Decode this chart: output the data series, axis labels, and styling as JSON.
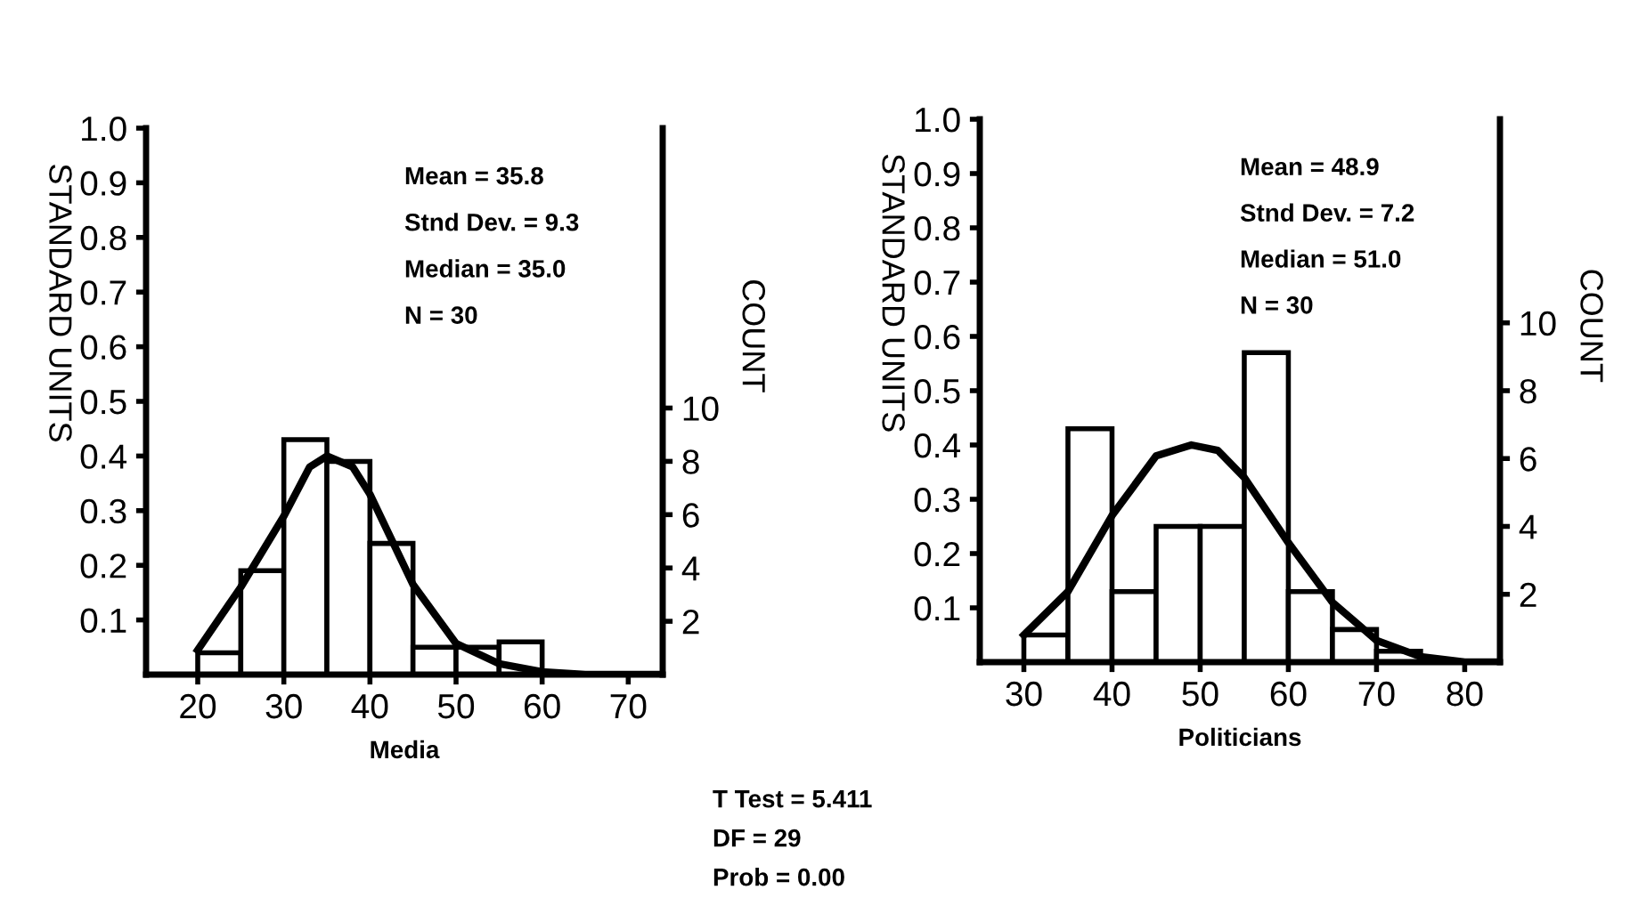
{
  "chart_data": [
    {
      "type": "histogram",
      "xlabel": "Media",
      "ylabel": "STANDARD UNITS",
      "y2label": "COUNT",
      "bins": [
        20,
        25,
        30,
        35,
        40,
        45,
        50,
        55,
        60
      ],
      "values": [
        0.04,
        0.19,
        0.43,
        0.39,
        0.24,
        0.05,
        0.05,
        0.06
      ],
      "color": "#ffffff",
      "series": [
        {
          "type": "line",
          "color": "#000000",
          "x": [
            20,
            25,
            30,
            33,
            35,
            38,
            40,
            45,
            50,
            55,
            60,
            65,
            70,
            74
          ],
          "values": [
            0.045,
            0.16,
            0.29,
            0.38,
            0.4,
            0.38,
            0.33,
            0.165,
            0.057,
            0.02,
            0.005,
            0,
            0,
            0
          ]
        }
      ],
      "xlim": [
        14,
        74
      ],
      "xticks": [
        20,
        30,
        40,
        50,
        60,
        70
      ],
      "ylim": [
        0,
        1.0
      ],
      "yticks": [
        0.1,
        0.2,
        0.3,
        0.4,
        0.5,
        0.6,
        0.7,
        0.8,
        0.9,
        {
          "value": 1,
          "label": "1.0"
        }
      ],
      "y2lim": [
        0,
        20.5
      ],
      "y2ticks": [
        2,
        4,
        6,
        8,
        10
      ],
      "grid": false,
      "legend": false,
      "annotations": [
        "Mean = 35.8",
        "Stnd Dev. = 9.3",
        "Median = 35.0",
        "N = 30"
      ]
    },
    {
      "type": "histogram",
      "xlabel": "Politicians",
      "ylabel": "STANDARD UNITS",
      "y2label": "COUNT",
      "bins": [
        30,
        35,
        40,
        45,
        50,
        55,
        60,
        65,
        70,
        75
      ],
      "values": [
        0.05,
        0.43,
        0.13,
        0.25,
        0.25,
        0.57,
        0.13,
        0.06,
        0.02
      ],
      "color": "#ffffff",
      "series": [
        {
          "type": "line",
          "color": "#000000",
          "x": [
            30,
            35,
            40,
            45,
            49,
            52,
            55,
            60,
            65,
            70,
            75,
            80,
            84
          ],
          "values": [
            0.05,
            0.13,
            0.27,
            0.38,
            0.4,
            0.39,
            0.34,
            0.22,
            0.11,
            0.04,
            0.01,
            0,
            0
          ]
        }
      ],
      "xlim": [
        25,
        84
      ],
      "xticks": [
        30,
        40,
        50,
        60,
        70,
        80
      ],
      "ylim": [
        0,
        1.0
      ],
      "yticks": [
        0.1,
        0.2,
        0.3,
        0.4,
        0.5,
        0.6,
        0.7,
        0.8,
        0.9,
        {
          "value": 1,
          "label": "1.0"
        }
      ],
      "y2lim": [
        0,
        16
      ],
      "y2ticks": [
        2,
        4,
        6,
        8,
        10
      ],
      "grid": false,
      "legend": false,
      "annotations": [
        "Mean = 48.9",
        "Stnd Dev. = 7.2",
        "Median = 51.0",
        "N = 30",
        "T Test = 5.411",
        "DF = 29",
        "Prob = 0.00"
      ]
    }
  ]
}
